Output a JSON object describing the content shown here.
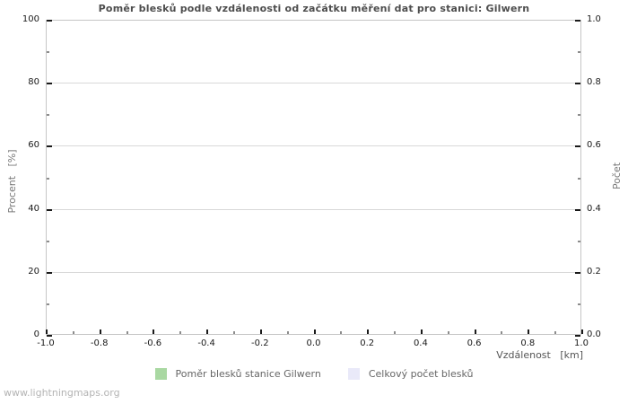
{
  "chart_data": {
    "type": "line",
    "title": "Poměr blesků podle vzdálenosti od začátku měření dat pro stanici: Gilwern",
    "xlabel": "Vzdálenost   [km]",
    "ylabel_left": "Procent   [%]",
    "ylabel_right": "Počet",
    "xlim": [
      -1.0,
      1.0
    ],
    "ylim_left": [
      0,
      100
    ],
    "ylim_right": [
      0.0,
      1.0
    ],
    "x_major_ticks": [
      "-1.0",
      "-0.8",
      "-0.6",
      "-0.4",
      "-0.2",
      "0.0",
      "0.2",
      "0.4",
      "0.6",
      "0.8",
      "1.0"
    ],
    "y_left_major_ticks": [
      "0",
      "20",
      "40",
      "60",
      "80",
      "100"
    ],
    "y_right_major_ticks": [
      "0.0",
      "0.2",
      "0.4",
      "0.6",
      "0.8",
      "1.0"
    ],
    "minor_ticks_between_majors": 1,
    "grid": "horizontal-major-only",
    "legend_position": "bottom-center",
    "series": [
      {
        "name": "Poměr blesků stanice Gilwern",
        "color": "#a9d8a2",
        "points": []
      },
      {
        "name": "Celkový počet blesků",
        "color": "#e9e9f9",
        "points": []
      }
    ]
  },
  "watermark": "www.lightningmaps.org"
}
